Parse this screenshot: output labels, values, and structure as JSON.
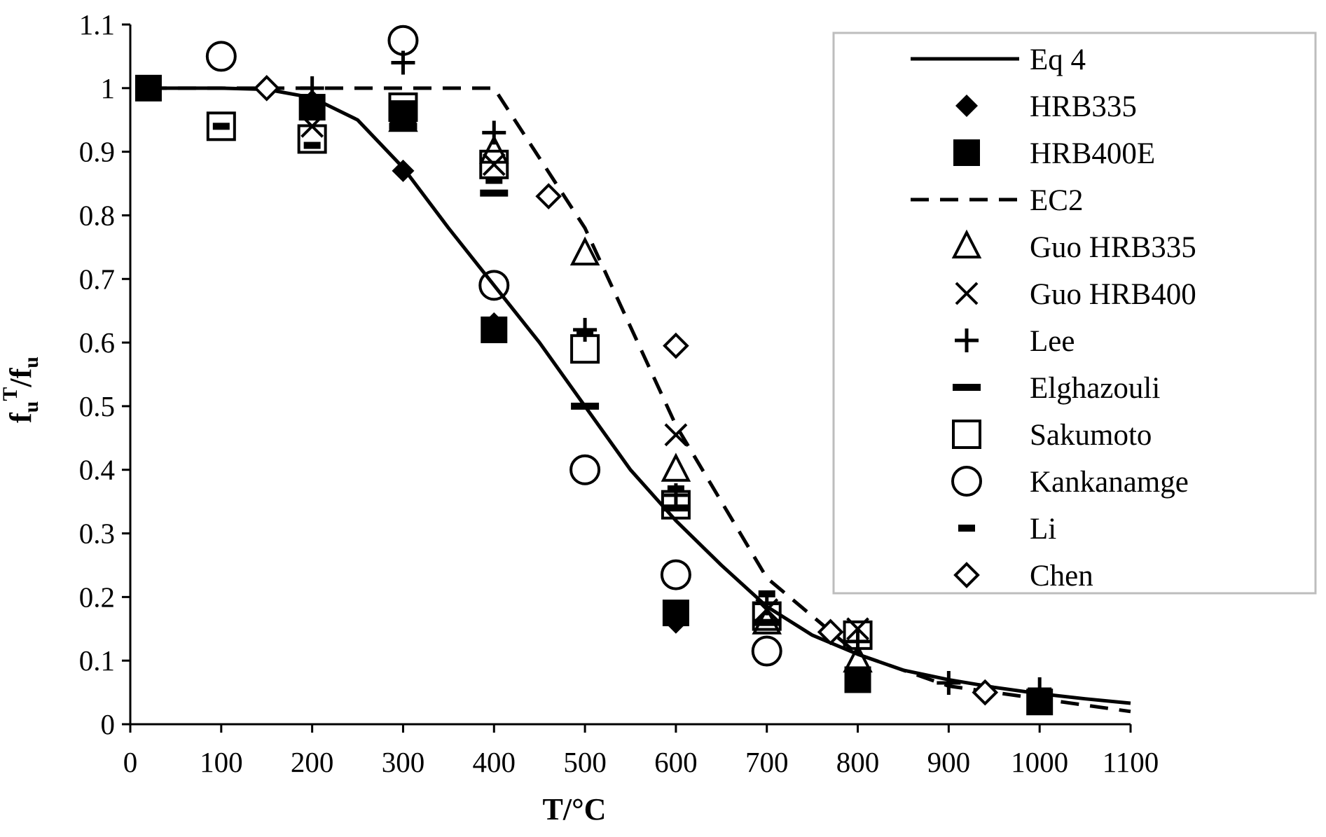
{
  "chart_data": {
    "type": "scatter",
    "title": "",
    "xlabel": "T/°C",
    "ylabel": {
      "base": "f",
      "sub": "u",
      "sup": "T",
      "denom": "/f",
      "denom_sub": "u"
    },
    "xlim": [
      0,
      1100
    ],
    "ylim": [
      0,
      1.1
    ],
    "x_ticks": [
      0,
      100,
      200,
      300,
      400,
      500,
      600,
      700,
      800,
      900,
      1000,
      1100
    ],
    "y_ticks": [
      0,
      0.1,
      0.2,
      0.3,
      0.4,
      0.5,
      0.6,
      0.7,
      0.8,
      0.9,
      1,
      1.1
    ],
    "x_tick_labels": [
      "0",
      "100",
      "200",
      "300",
      "400",
      "500",
      "600",
      "700",
      "800",
      "900",
      "1000",
      "1100"
    ],
    "y_tick_labels": [
      "0",
      "0.1",
      "0.2",
      "0.3",
      "0.4",
      "0.5",
      "0.6",
      "0.7",
      "0.8",
      "0.9",
      "1",
      "1.1"
    ],
    "grid": false,
    "legend_position": "top-right",
    "series": [
      {
        "name": "Eq 4",
        "kind": "line",
        "style": "solid",
        "x": [
          20,
          100,
          150,
          200,
          250,
          300,
          350,
          400,
          450,
          500,
          550,
          600,
          650,
          700,
          750,
          800,
          850,
          900,
          950,
          1000,
          1050,
          1100
        ],
        "y": [
          1.0,
          1.0,
          0.998,
          0.985,
          0.95,
          0.875,
          0.78,
          0.69,
          0.6,
          0.5,
          0.4,
          0.32,
          0.25,
          0.185,
          0.14,
          0.11,
          0.085,
          0.07,
          0.058,
          0.048,
          0.04,
          0.033
        ]
      },
      {
        "name": "HRB335",
        "kind": "marker",
        "marker": "diamond-filled",
        "x": [
          20,
          200,
          300,
          400,
          600,
          800
        ],
        "y": [
          1.0,
          0.98,
          0.87,
          0.63,
          0.16,
          0.07
        ]
      },
      {
        "name": "HRB400E",
        "kind": "marker",
        "marker": "square-filled",
        "x": [
          20,
          200,
          300,
          400,
          600,
          800,
          1000
        ],
        "y": [
          1.0,
          0.97,
          0.96,
          0.62,
          0.175,
          0.07,
          0.035
        ]
      },
      {
        "name": "EC2",
        "kind": "line",
        "style": "dashed",
        "x": [
          20,
          400,
          500,
          600,
          700,
          800,
          900,
          1000,
          1100
        ],
        "y": [
          1.0,
          1.0,
          0.78,
          0.47,
          0.23,
          0.11,
          0.06,
          0.04,
          0.02
        ]
      },
      {
        "name": "Guo HRB335",
        "kind": "marker",
        "marker": "triangle-open",
        "x": [
          300,
          400,
          500,
          600,
          700,
          800
        ],
        "y": [
          0.95,
          0.9,
          0.74,
          0.4,
          0.16,
          0.1
        ]
      },
      {
        "name": "Guo HRB400",
        "kind": "marker",
        "marker": "cross-x",
        "x": [
          200,
          400,
          600,
          700,
          800
        ],
        "y": [
          0.94,
          0.88,
          0.455,
          0.18,
          0.15
        ]
      },
      {
        "name": "Lee",
        "kind": "marker",
        "marker": "plus",
        "x": [
          200,
          300,
          400,
          500,
          600,
          700,
          800,
          900,
          1000
        ],
        "y": [
          1.0,
          1.04,
          0.93,
          0.62,
          0.36,
          0.19,
          0.13,
          0.065,
          0.055
        ]
      },
      {
        "name": "Elghazouli",
        "kind": "marker",
        "marker": "dash",
        "x": [
          300,
          400,
          500,
          600,
          700
        ],
        "y": [
          0.94,
          0.835,
          0.5,
          0.34,
          0.16
        ]
      },
      {
        "name": "Sakumoto",
        "kind": "marker",
        "marker": "square-open",
        "x": [
          100,
          200,
          300,
          400,
          500,
          600,
          700,
          800
        ],
        "y": [
          0.94,
          0.92,
          0.97,
          0.88,
          0.59,
          0.345,
          0.17,
          0.14
        ]
      },
      {
        "name": "Kankanamge",
        "kind": "marker",
        "marker": "circle-open",
        "x": [
          100,
          300,
          400,
          500,
          600,
          700
        ],
        "y": [
          1.05,
          1.075,
          0.69,
          0.4,
          0.235,
          0.115
        ]
      },
      {
        "name": "Li",
        "kind": "marker",
        "marker": "short-dash",
        "x": [
          100,
          200,
          400,
          500,
          600,
          700
        ],
        "y": [
          0.94,
          0.91,
          0.855,
          0.615,
          0.37,
          0.205
        ]
      },
      {
        "name": "Chen",
        "kind": "marker",
        "marker": "diamond-open",
        "x": [
          150,
          460,
          600,
          770,
          940
        ],
        "y": [
          1.0,
          0.83,
          0.595,
          0.145,
          0.05
        ]
      }
    ]
  }
}
